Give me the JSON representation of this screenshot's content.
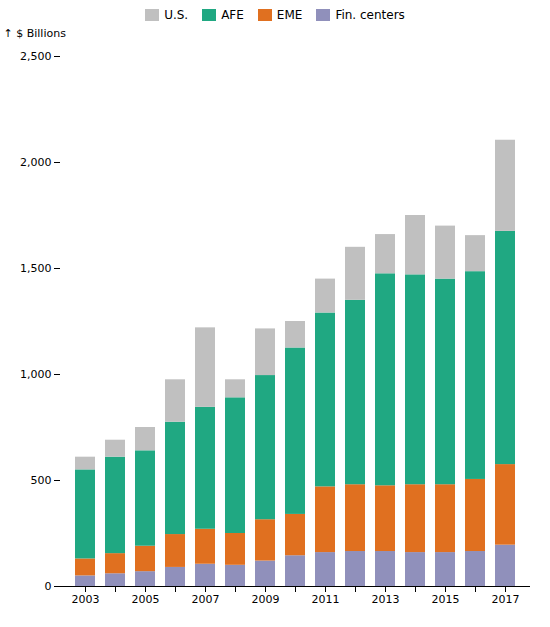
{
  "chart_data": {
    "type": "bar",
    "stacked": true,
    "categories": [
      "2003",
      null,
      "2005",
      null,
      "2007",
      null,
      "2009",
      null,
      "2011",
      null,
      "2013",
      null,
      "2015",
      null,
      "2017"
    ],
    "series": [
      {
        "name": "Fin. centers",
        "color": "#9090bb",
        "values": [
          50,
          60,
          70,
          90,
          105,
          100,
          120,
          145,
          160,
          165,
          165,
          160,
          160,
          165,
          195
        ]
      },
      {
        "name": "EME",
        "color": "#e07020",
        "values": [
          80,
          95,
          120,
          155,
          165,
          150,
          195,
          195,
          310,
          315,
          310,
          320,
          320,
          340,
          380
        ]
      },
      {
        "name": "AFE",
        "color": "#20a882",
        "values": [
          420,
          455,
          450,
          530,
          575,
          640,
          680,
          785,
          820,
          870,
          1000,
          990,
          970,
          980,
          1100
        ]
      },
      {
        "name": "U.S.",
        "color": "#c0c0c0",
        "values": [
          60,
          80,
          110,
          200,
          375,
          85,
          220,
          125,
          160,
          250,
          185,
          280,
          250,
          170,
          430
        ]
      }
    ],
    "ylabel": "$ Billions",
    "ylim": [
      0,
      2500
    ],
    "yticks": [
      0,
      500,
      {
        "value": 1000,
        "label": "1,000"
      },
      {
        "value": 1500,
        "label": "1,500"
      },
      {
        "value": 2000,
        "label": "2,000"
      },
      {
        "value": 2500,
        "label": "2,500"
      }
    ],
    "grid": false,
    "legend": "top"
  }
}
